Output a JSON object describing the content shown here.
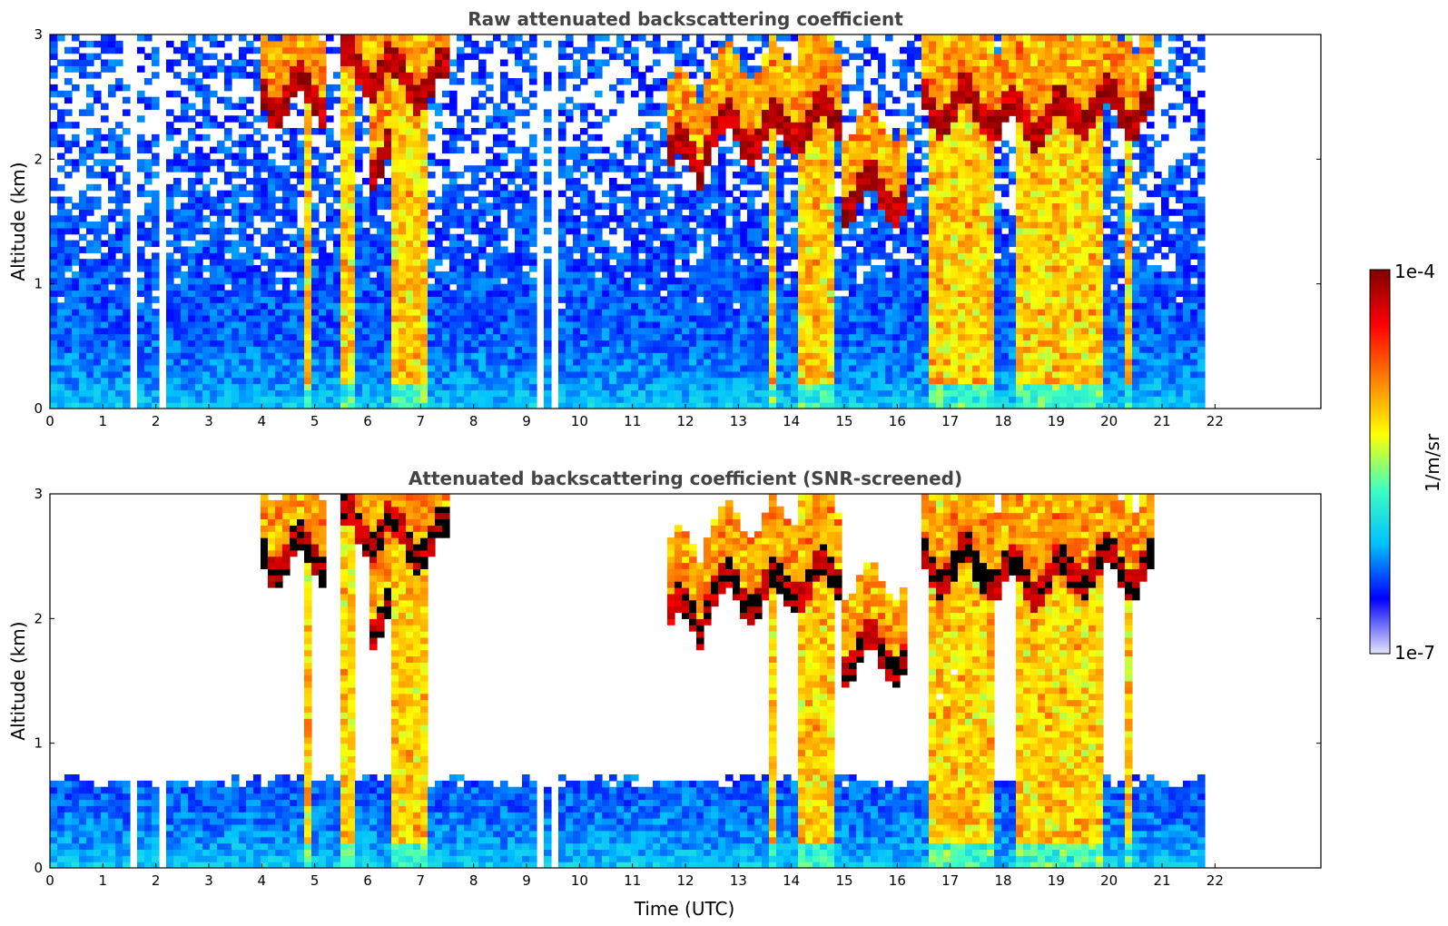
{
  "chart_data": [
    {
      "type": "heatmap",
      "title": "Raw attenuated backscattering coefficient",
      "xlabel": "",
      "ylabel": "Altitude (km)",
      "xlim": [
        0,
        24
      ],
      "ylim": [
        0,
        3
      ],
      "xticks": [
        "0",
        "1",
        "2",
        "3",
        "4",
        "5",
        "6",
        "7",
        "8",
        "9",
        "10",
        "11",
        "12",
        "13",
        "14",
        "15",
        "16",
        "17",
        "18",
        "19",
        "20",
        "21",
        "22"
      ],
      "yticks": [
        "0",
        "1",
        "2",
        "3"
      ],
      "data_extent_hours": [
        0,
        21.8
      ],
      "missing_gaps_hours": [
        [
          1.55,
          1.65
        ],
        [
          2.05,
          2.2
        ],
        [
          9.2,
          9.3
        ],
        [
          9.5,
          9.6
        ]
      ],
      "cloud_layers": [
        {
          "start": 4.0,
          "end": 5.2,
          "base_km": 2.4
        },
        {
          "start": 5.5,
          "end": 6.5,
          "base_km": 2.6
        },
        {
          "start": 6.5,
          "end": 7.5,
          "base_km": 2.5
        },
        {
          "start": 6.0,
          "end": 6.4,
          "base_km": 1.9
        },
        {
          "start": 11.7,
          "end": 12.3,
          "base_km": 1.9
        },
        {
          "start": 12.3,
          "end": 14.0,
          "base_km": 2.1
        },
        {
          "start": 14.0,
          "end": 15.0,
          "base_km": 2.2
        },
        {
          "start": 15.0,
          "end": 16.2,
          "base_km": 1.6
        },
        {
          "start": 16.5,
          "end": 17.8,
          "base_km": 2.3
        },
        {
          "start": 17.8,
          "end": 19.3,
          "base_km": 2.2
        },
        {
          "start": 19.3,
          "end": 20.8,
          "base_km": 2.3
        }
      ],
      "precipitation_columns": [
        {
          "start": 4.8,
          "end": 4.95
        },
        {
          "start": 5.5,
          "end": 5.75
        },
        {
          "start": 6.4,
          "end": 7.1
        },
        {
          "start": 13.55,
          "end": 13.65
        },
        {
          "start": 14.15,
          "end": 14.85
        },
        {
          "start": 16.55,
          "end": 17.8
        },
        {
          "start": 18.3,
          "end": 19.95
        },
        {
          "start": 20.3,
          "end": 20.4
        }
      ]
    },
    {
      "type": "heatmap",
      "title": "Attenuated backscattering coefficient (SNR-screened)",
      "xlabel": "Time (UTC)",
      "ylabel": "Altitude (km)",
      "xlim": [
        0,
        24
      ],
      "ylim": [
        0,
        3
      ],
      "xticks": [
        "0",
        "1",
        "2",
        "3",
        "4",
        "5",
        "6",
        "7",
        "8",
        "9",
        "10",
        "11",
        "12",
        "13",
        "14",
        "15",
        "16",
        "17",
        "18",
        "19",
        "20",
        "21",
        "22"
      ],
      "yticks": [
        "0",
        "1",
        "2",
        "3"
      ],
      "data_extent_hours": [
        0,
        21.8
      ],
      "screened_boundary_layer_top_km": 0.65
    }
  ],
  "colorbar": {
    "label": "1/m/sr",
    "max_label": "1e-4",
    "min_label": "1e-7",
    "colormap": "jet",
    "colors": [
      "#e6e6fa",
      "#0000ff",
      "#00c0ff",
      "#40ffc0",
      "#ffff00",
      "#ff8000",
      "#ff0000",
      "#800000"
    ]
  }
}
